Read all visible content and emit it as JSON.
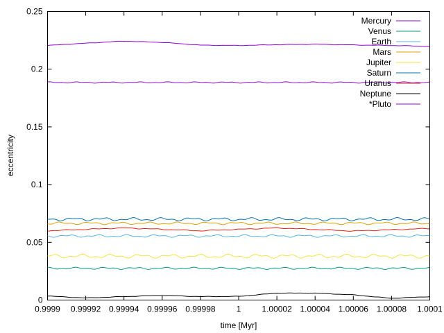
{
  "chart_data": {
    "type": "line",
    "xlabel": "time [Myr]",
    "ylabel": "eccentricity",
    "xlim": [
      0.9999,
      1.0001
    ],
    "ylim": [
      0,
      0.25
    ],
    "x_ticks": [
      "0.9999",
      "0.99992",
      "0.99994",
      "0.99996",
      "0.99998",
      "1",
      "1.00002",
      "1.00004",
      "1.00006",
      "1.00008",
      "1.0001"
    ],
    "y_ticks": [
      "0",
      "0.05",
      "0.1",
      "0.15",
      "0.2",
      "0.25"
    ],
    "grid": false,
    "legend_position": "top-right",
    "series": [
      {
        "name": "Mercury",
        "color": "#9400d3",
        "x": [
          0.9999,
          0.99992,
          0.99994,
          0.99996,
          0.99998,
          1.0,
          1.00002,
          1.00004,
          1.00006,
          1.00008,
          1.0001
        ],
        "y": [
          0.2205,
          0.2225,
          0.2243,
          0.2232,
          0.2208,
          0.2205,
          0.2212,
          0.2216,
          0.221,
          0.2205,
          0.2198
        ],
        "ripple": 0.0002
      },
      {
        "name": "Venus",
        "color": "#009e73",
        "x": [
          0.9999,
          1.0001
        ],
        "y": [
          0.0275,
          0.0275
        ],
        "ripple": 0.001
      },
      {
        "name": "Earth",
        "color": "#56b4e9",
        "x": [
          0.9999,
          1.0001
        ],
        "y": [
          0.0555,
          0.0555
        ],
        "ripple": 0.0012
      },
      {
        "name": "Mars",
        "color": "#e69f00",
        "x": [
          0.9999,
          1.0001
        ],
        "y": [
          0.0665,
          0.0665
        ],
        "ripple": 0.0012
      },
      {
        "name": "Jupiter",
        "color": "#f0e442",
        "x": [
          0.9999,
          1.0001
        ],
        "y": [
          0.038,
          0.038
        ],
        "ripple": 0.0018
      },
      {
        "name": "Saturn",
        "color": "#0072b2",
        "x": [
          0.9999,
          1.0001
        ],
        "y": [
          0.07,
          0.07
        ],
        "ripple": 0.0015
      },
      {
        "name": "Uranus",
        "color": "#e51e10",
        "x": [
          0.9999,
          0.99994,
          0.99998,
          1.00002,
          1.00006,
          1.0001
        ],
        "y": [
          0.06,
          0.0625,
          0.06,
          0.0625,
          0.0598,
          0.062
        ],
        "ripple": 0.0004
      },
      {
        "name": "Neptune",
        "color": "#000000",
        "x": [
          0.9999,
          0.99992,
          0.99994,
          0.99996,
          0.99998,
          1.0,
          1.00002,
          1.00004,
          1.00006,
          1.00008,
          1.0001
        ],
        "y": [
          0.0035,
          0.0018,
          0.003,
          0.004,
          0.003,
          0.0032,
          0.006,
          0.006,
          0.0045,
          0.0015,
          0.003
        ],
        "ripple": 0.0002
      },
      {
        "name": "*Pluto",
        "color": "#9400d3",
        "x": [
          0.9999,
          1.0001
        ],
        "y": [
          0.1885,
          0.1885
        ],
        "ripple": 0.0006
      }
    ]
  }
}
